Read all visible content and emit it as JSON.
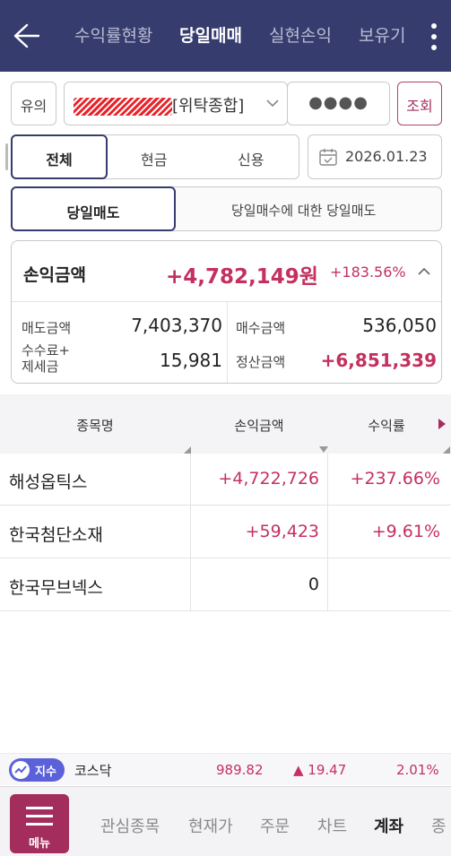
{
  "header": {
    "tabs": [
      {
        "label": "수익률현황"
      },
      {
        "label": "당일매매"
      },
      {
        "label": "실현손익"
      },
      {
        "label": "보유기"
      }
    ],
    "active_tab": "당일매매"
  },
  "account": {
    "type_label": "유의",
    "account_name_suffix": "[위탁종합]",
    "password_mask": "●●●●",
    "query_button": "조회"
  },
  "filter": {
    "segments": [
      "전체",
      "현금",
      "신용"
    ],
    "selected": "전체",
    "date": "2026.01.23"
  },
  "trade_tabs": {
    "items": [
      "당일매도",
      "당일매수에 대한 당일매도"
    ],
    "selected": "당일매도"
  },
  "summary": {
    "pl_label": "손익금액",
    "pl_value": "+4,782,149원",
    "pl_rate": "+183.56%",
    "sell_label": "매도금액",
    "sell_value": "7,403,370",
    "buy_label": "매수금액",
    "buy_value": "536,050",
    "fee_label_1": "수수료+",
    "fee_label_2": "제세금",
    "fee_value": "15,981",
    "settle_label": "정산금액",
    "settle_value": "+6,851,339"
  },
  "table": {
    "headers": [
      "종목명",
      "손익금액",
      "수익률"
    ],
    "rows": [
      {
        "name": "해성옵틱스",
        "pl": "+4,722,726",
        "rate": "+237.66%"
      },
      {
        "name": "한국첨단소재",
        "pl": "+59,423",
        "rate": "+9.61%"
      },
      {
        "name": "한국무브넥스",
        "pl": "0",
        "rate": ""
      }
    ]
  },
  "ticker": {
    "badge": "지수",
    "name": "코스닥",
    "value": "989.82",
    "change": "▲ 19.47",
    "rate": "2.01%"
  },
  "footer": {
    "menu_label": "메뉴",
    "items": [
      "관심종목",
      "현재가",
      "주문",
      "차트",
      "계좌",
      "종"
    ],
    "active": "계좌"
  },
  "colors": {
    "header_bg": "#373c6e",
    "positive": "#c4305f",
    "menu_bg": "#a32d5c",
    "ticker_badge": "#5b62d9"
  }
}
